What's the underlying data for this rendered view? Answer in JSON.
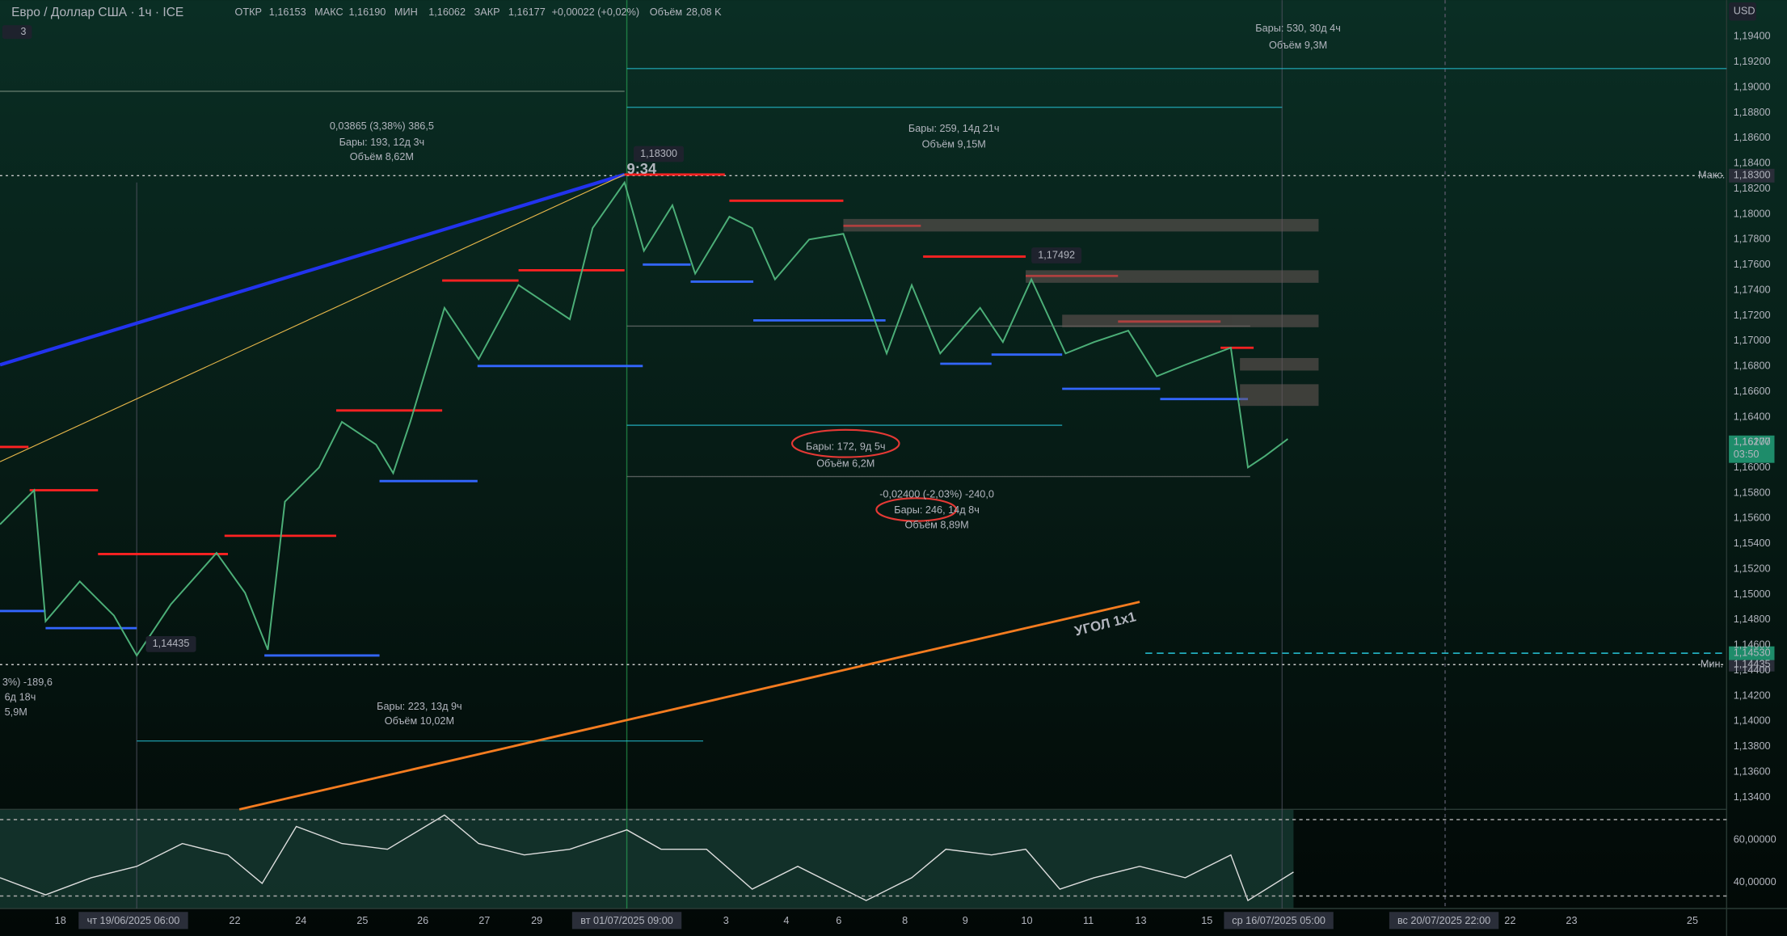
{
  "header": {
    "symbol": "Евро / Доллар США · 1ч · ICE",
    "ohlc": [
      {
        "label": "ОТКР",
        "value": "1,16153"
      },
      {
        "label": "МАКС",
        "value": "1,16190"
      },
      {
        "label": "МИН",
        "value": "1,16062"
      },
      {
        "label": "ЗАКР",
        "value": "1,16177"
      }
    ],
    "change": "+0,00022 (+0,02%)",
    "volume_label": "Объём",
    "volume": "28,08 K",
    "indicators": "3"
  },
  "price_axis": {
    "currency": "USD",
    "labels": [
      "1,19400",
      "1,19200",
      "1,19000",
      "1,18800",
      "1,18600",
      "1,18400",
      "1,18200",
      "1,18000",
      "1,17800",
      "1,17600",
      "1,17400",
      "1,17200",
      "1,17000",
      "1,16800",
      "1,16600",
      "1,16400",
      "1,16200",
      "1,16000",
      "1,15800",
      "1,15600",
      "1,15400",
      "1,15200",
      "1,15000",
      "1,14800",
      "1,14600",
      "1,14400",
      "1,14200",
      "1,14000",
      "1,13800",
      "1,13600",
      "1,13400"
    ],
    "max_label": "Макс.",
    "max": "1,18300",
    "min_label": "Мин.",
    "min": "1,14435",
    "current": "1,16177",
    "countdown": "03:50",
    "level": "1,14530"
  },
  "time_axis": [
    "18",
    "чт 19/06/2025   06:00",
    "22",
    "24",
    "25",
    "26",
    "27",
    "29",
    "вт 01/07/2025   09:00",
    "3",
    "4",
    "6",
    "8",
    "9",
    "10",
    "11",
    "13",
    "15",
    "ср 16/07/2025   05:00",
    "вс 20/07/2025   22:00",
    "22",
    "23",
    "25"
  ],
  "rsi_axis": [
    "60,00000",
    "40,00000"
  ],
  "annotations": [
    "0,03865 (3,38%) 386,5",
    "Бары: 193, 12д 3ч",
    "Объём 8,62M",
    "Бары: 259, 14д 21ч",
    "Объём 9,15M",
    "Бары: 530, 30д 4ч",
    "Объём 9,3M",
    "Бары: 172, 9д 5ч",
    "Объём 6,2M",
    "-0,02400 (-2,03%) -240,0",
    "Бары: 246, 14д 8ч",
    "Объём 8,89M",
    "Бары: 223, 13д 9ч",
    "Объём 10,02M",
    "3%) -189,6",
    "6д 18ч",
    "5,9M"
  ],
  "price_tags": [
    "1,18300",
    "1,17492",
    "1,14435"
  ],
  "time_marker": "9:34",
  "drawing_label": "УГОЛ 1x1"
}
